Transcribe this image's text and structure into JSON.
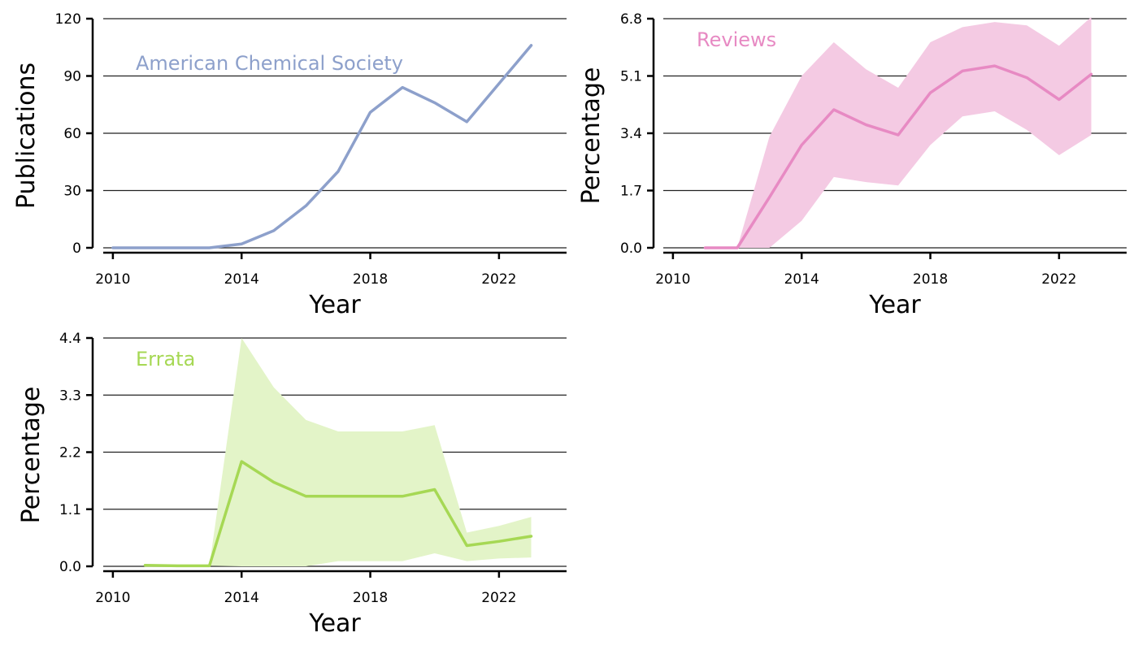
{
  "chart_data": [
    {
      "type": "line",
      "label": "American Chemical Society",
      "color": "#8da0cb",
      "band_color": "",
      "xlabel": "Year",
      "ylabel": "Publications",
      "xlim": [
        2009.7,
        2024.1
      ],
      "ylim": [
        0,
        120
      ],
      "xticks": [
        2010,
        2014,
        2018,
        2022
      ],
      "xtick_labels": [
        "2010",
        "2014",
        "2018",
        "2022"
      ],
      "yticks": [
        0,
        30,
        60,
        90,
        120
      ],
      "ytick_labels": [
        "0",
        "30",
        "60",
        "90",
        "120"
      ],
      "grid": "horizontal",
      "x": [
        2010,
        2011,
        2012,
        2013,
        2014,
        2015,
        2016,
        2017,
        2018,
        2019,
        2020,
        2021,
        2022,
        2023
      ],
      "y": [
        0,
        0,
        0,
        0,
        2,
        9,
        22,
        40,
        71,
        84,
        76,
        66,
        86,
        106
      ]
    },
    {
      "type": "area",
      "label": "Reviews",
      "color": "#e78ac3",
      "band_color": "#f4cae3",
      "xlabel": "Year",
      "ylabel": "Percentage",
      "xlim": [
        2009.7,
        2024.1
      ],
      "ylim": [
        0,
        6.8
      ],
      "xticks": [
        2010,
        2014,
        2018,
        2022
      ],
      "xtick_labels": [
        "2010",
        "2014",
        "2018",
        "2022"
      ],
      "yticks": [
        0,
        1.7,
        3.4,
        5.1,
        6.8
      ],
      "ytick_labels": [
        "0.0",
        "1.7",
        "3.4",
        "5.1",
        "6.8"
      ],
      "grid": "horizontal",
      "x": [
        2011,
        2012,
        2013,
        2014,
        2015,
        2016,
        2017,
        2018,
        2019,
        2020,
        2021,
        2022,
        2023
      ],
      "y": [
        0,
        0,
        1.5,
        3.05,
        4.1,
        3.65,
        3.35,
        4.6,
        5.25,
        5.4,
        5.05,
        4.4,
        5.15
      ],
      "lower": [
        0,
        0,
        0,
        0.8,
        2.1,
        1.95,
        1.85,
        3.05,
        3.9,
        4.05,
        3.5,
        2.75,
        3.35
      ],
      "upper": [
        0,
        0,
        3.3,
        5.1,
        6.1,
        5.3,
        4.75,
        6.1,
        6.55,
        6.7,
        6.6,
        6.0,
        6.85
      ]
    },
    {
      "type": "area",
      "label": "Errata",
      "color": "#a6d854",
      "band_color": "#e3f4c8",
      "xlabel": "Year",
      "ylabel": "Percentage",
      "xlim": [
        2009.7,
        2024.1
      ],
      "ylim": [
        0,
        4.4
      ],
      "xticks": [
        2010,
        2014,
        2018,
        2022
      ],
      "xtick_labels": [
        "2010",
        "2014",
        "2018",
        "2022"
      ],
      "yticks": [
        0,
        1.1,
        2.2,
        3.3,
        4.4
      ],
      "ytick_labels": [
        "0.0",
        "1.1",
        "2.2",
        "3.3",
        "4.4"
      ],
      "grid": "horizontal",
      "x": [
        2011,
        2012,
        2013,
        2014,
        2015,
        2016,
        2017,
        2018,
        2019,
        2020,
        2021,
        2022,
        2023
      ],
      "y": [
        0.02,
        0.01,
        0.01,
        2.02,
        1.62,
        1.35,
        1.35,
        1.35,
        1.35,
        1.48,
        0.4,
        0.48,
        0.58
      ],
      "lower": [
        0.02,
        0.01,
        0.01,
        0,
        0,
        0,
        0.1,
        0.1,
        0.1,
        0.25,
        0.1,
        0.15,
        0.17
      ],
      "upper": [
        0.02,
        0.01,
        0.01,
        4.4,
        3.45,
        2.82,
        2.6,
        2.6,
        2.6,
        2.72,
        0.65,
        0.78,
        0.95
      ]
    }
  ]
}
